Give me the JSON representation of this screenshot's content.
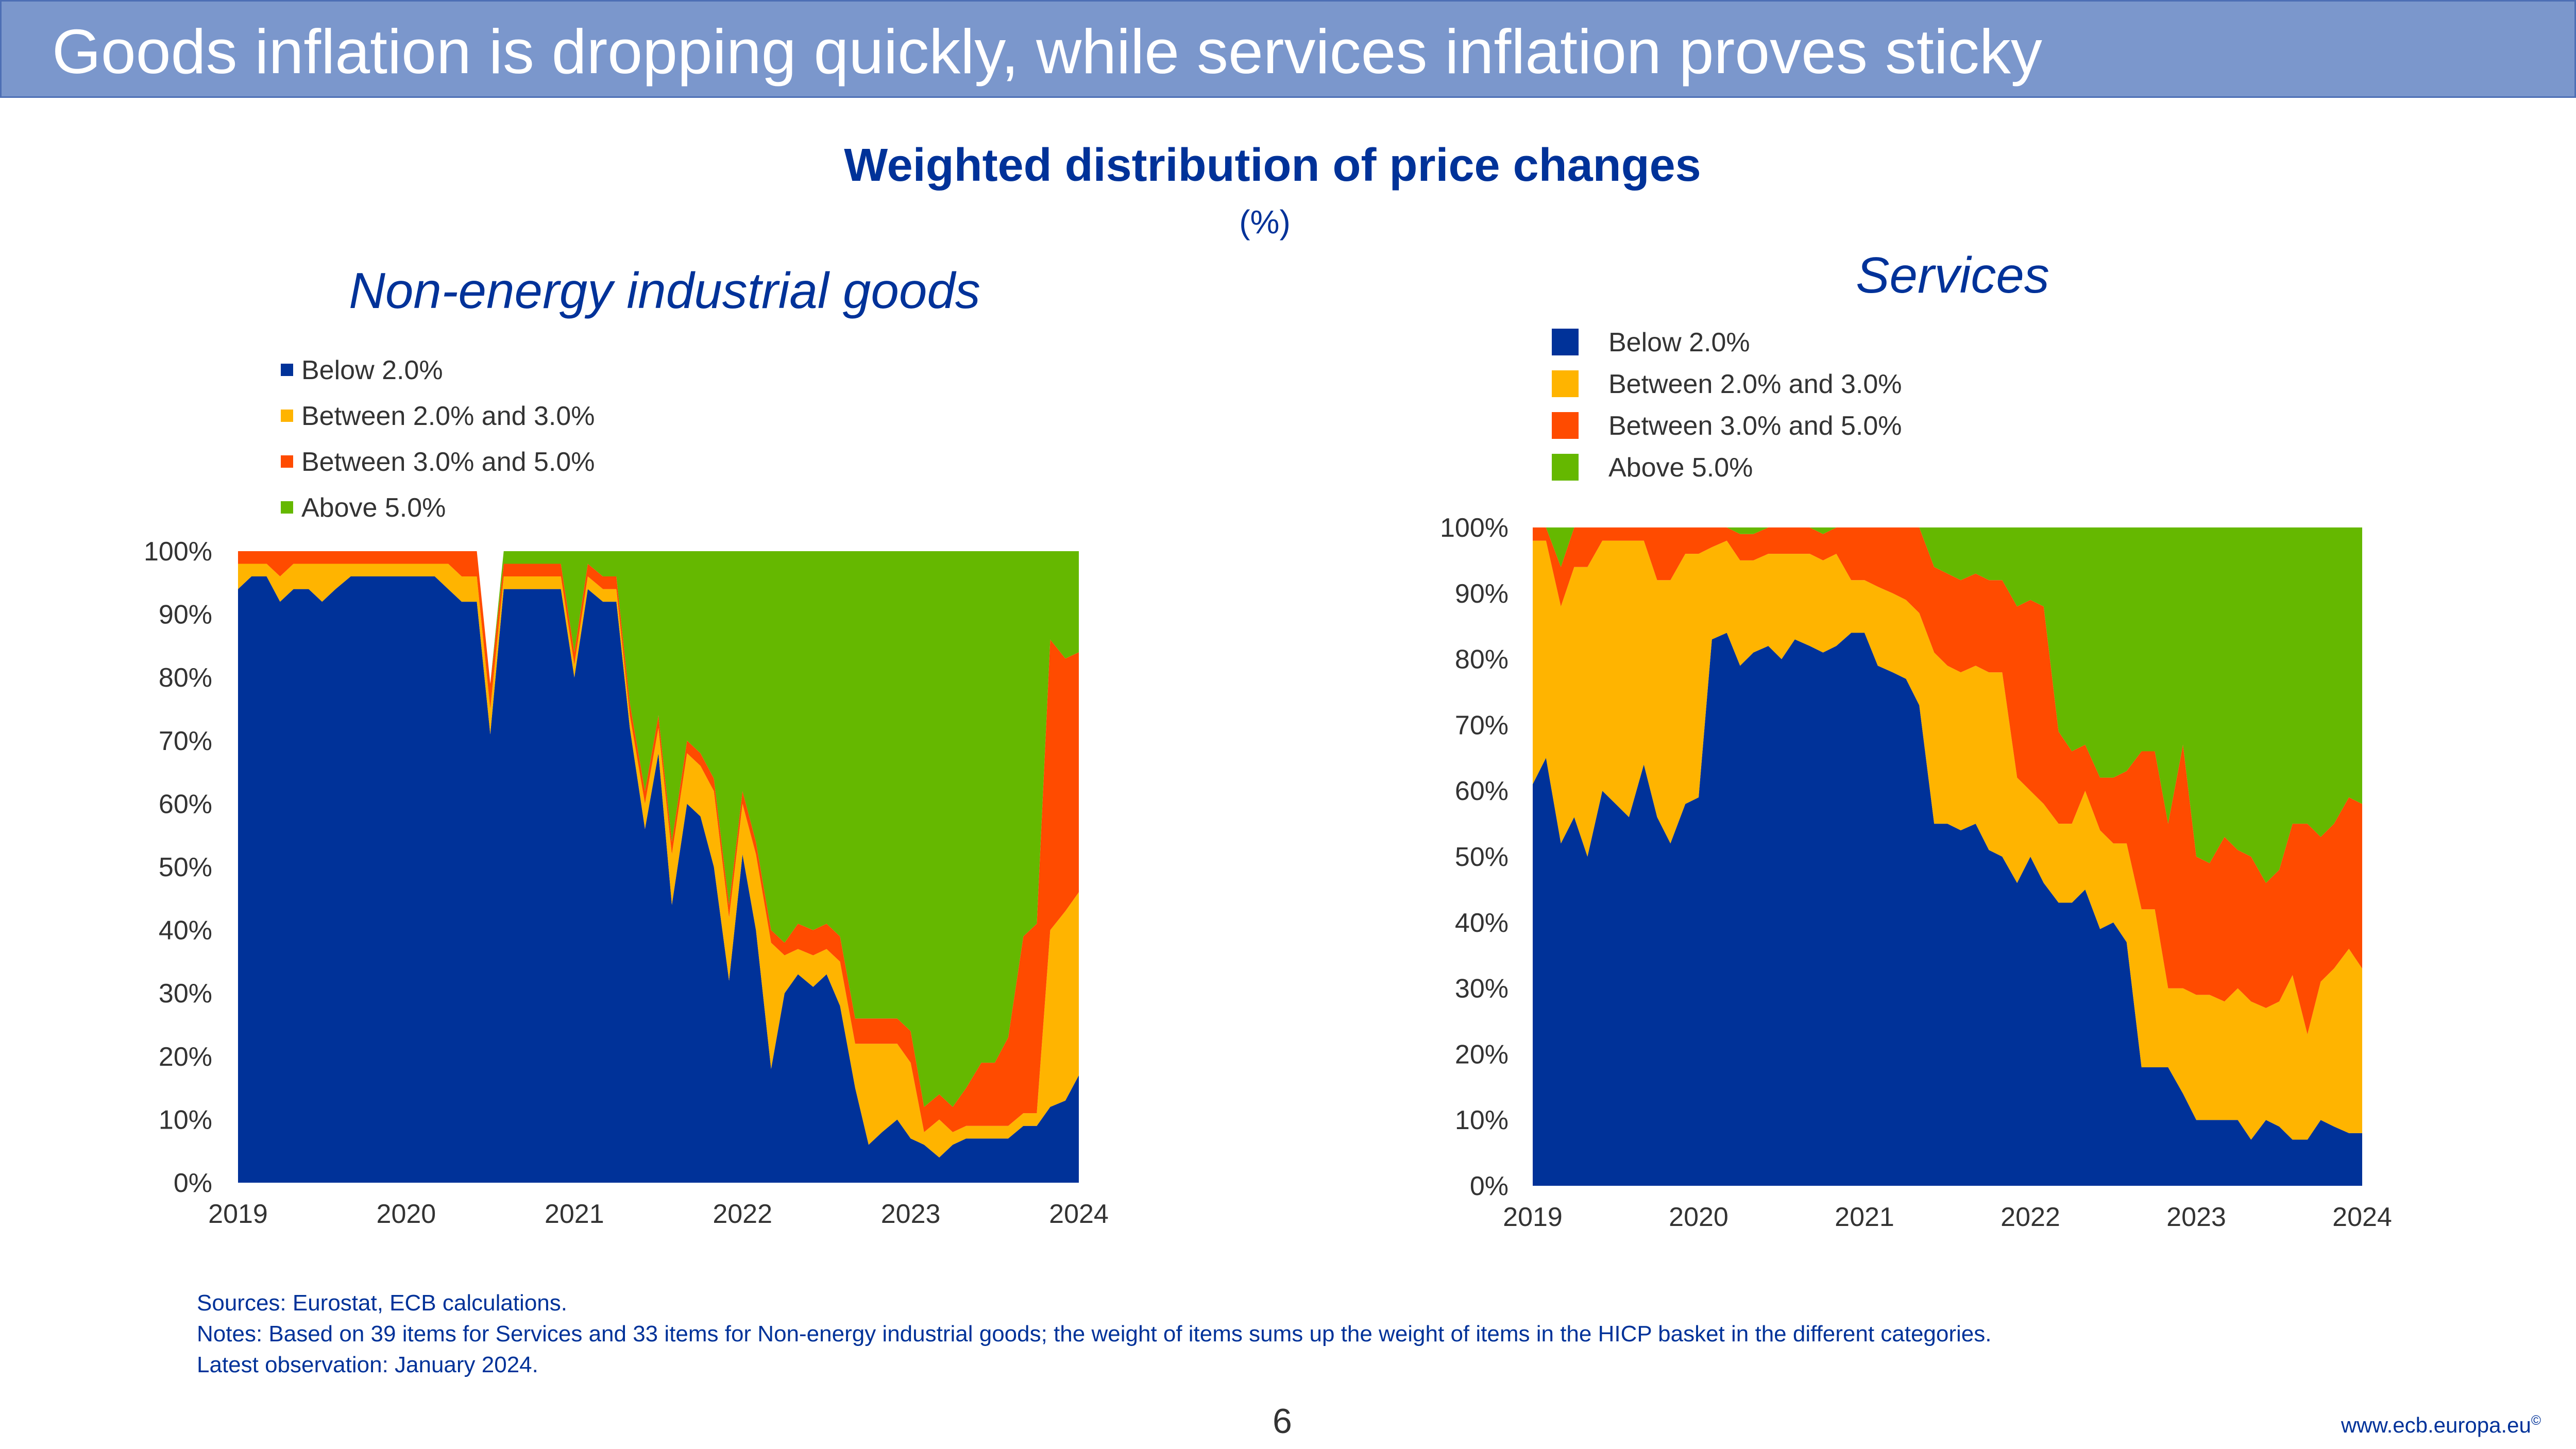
{
  "banner": {
    "title": "Goods inflation is dropping quickly, while services inflation proves sticky"
  },
  "header": {
    "title": "Weighted distribution of price changes",
    "unit": "(%)"
  },
  "colors": {
    "below_2": "#003299",
    "between_2_3": "#ffb400",
    "between_3_5": "#ff4b00",
    "above_5": "#65b800",
    "banner": "#7b97cc",
    "text_blue": "#003299"
  },
  "chart_data": [
    {
      "type": "area",
      "stacked": true,
      "title": "Non-energy industrial goods",
      "legend_placement": "top-left",
      "ylim": [
        0,
        100
      ],
      "y_ticks": [
        "0%",
        "10%",
        "20%",
        "30%",
        "40%",
        "50%",
        "60%",
        "70%",
        "80%",
        "90%",
        "100%"
      ],
      "x_ticks": [
        "2019",
        "2020",
        "2021",
        "2022",
        "2023",
        "2024"
      ],
      "x_range": [
        2019,
        2024
      ],
      "x": [
        2019.0,
        2019.08,
        2019.17,
        2019.25,
        2019.33,
        2019.42,
        2019.5,
        2019.58,
        2019.67,
        2019.75,
        2019.83,
        2019.92,
        2020.0,
        2020.08,
        2020.17,
        2020.25,
        2020.33,
        2020.42,
        2020.5,
        2020.58,
        2020.67,
        2020.75,
        2020.83,
        2020.92,
        2021.0,
        2021.08,
        2021.17,
        2021.25,
        2021.33,
        2021.42,
        2021.5,
        2021.58,
        2021.67,
        2021.75,
        2021.83,
        2021.92,
        2022.0,
        2022.08,
        2022.17,
        2022.25,
        2022.33,
        2022.42,
        2022.5,
        2022.58,
        2022.67,
        2022.75,
        2022.83,
        2022.92,
        2023.0,
        2023.08,
        2023.17,
        2023.25,
        2023.33,
        2023.42,
        2023.5,
        2023.58,
        2023.67,
        2023.75,
        2023.83,
        2023.92,
        2024.0
      ],
      "series": [
        {
          "name": "Below 2.0%",
          "values": [
            94,
            96,
            96,
            92,
            94,
            94,
            92,
            94,
            96,
            96,
            96,
            96,
            96,
            96,
            96,
            94,
            92,
            92,
            71,
            94,
            94,
            94,
            94,
            94,
            80,
            94,
            92,
            92,
            72,
            56,
            68,
            44,
            60,
            58,
            50,
            32,
            52,
            40,
            18,
            30,
            33,
            31,
            33,
            28,
            15,
            6,
            8,
            10,
            7,
            6,
            4,
            6,
            7,
            7,
            7,
            7,
            9,
            9,
            12,
            13,
            17
          ]
        },
        {
          "name": "Between 2.0% and 3.0%",
          "values": [
            4,
            2,
            2,
            4,
            4,
            4,
            6,
            4,
            2,
            2,
            2,
            2,
            2,
            2,
            2,
            4,
            4,
            4,
            4,
            2,
            2,
            2,
            2,
            2,
            2,
            2,
            2,
            2,
            2,
            4,
            4,
            8,
            8,
            8,
            12,
            10,
            8,
            12,
            20,
            6,
            4,
            5,
            4,
            7,
            7,
            16,
            14,
            12,
            12,
            2,
            6,
            2,
            2,
            2,
            2,
            2,
            2,
            2,
            28,
            30,
            29
          ]
        },
        {
          "name": "Between 3.0% and 5.0%",
          "values": [
            2,
            2,
            2,
            4,
            2,
            2,
            2,
            2,
            2,
            2,
            2,
            2,
            2,
            2,
            2,
            2,
            4,
            4,
            4,
            2,
            2,
            2,
            2,
            2,
            2,
            2,
            2,
            2,
            2,
            2,
            2,
            2,
            2,
            2,
            2,
            2,
            2,
            2,
            2,
            2,
            4,
            4,
            4,
            4,
            4,
            4,
            4,
            4,
            5,
            4,
            4,
            4,
            6,
            10,
            10,
            14,
            28,
            30,
            46,
            40,
            38
          ]
        },
        {
          "name": "Above 5.0%",
          "values": [
            0,
            0,
            0,
            0,
            0,
            0,
            0,
            0,
            0,
            0,
            0,
            0,
            0,
            0,
            0,
            0,
            0,
            0,
            0,
            2,
            2,
            2,
            2,
            2,
            16,
            2,
            4,
            4,
            24,
            38,
            26,
            46,
            30,
            32,
            36,
            56,
            38,
            46,
            60,
            62,
            59,
            60,
            59,
            61,
            74,
            74,
            74,
            74,
            76,
            88,
            86,
            88,
            85,
            81,
            81,
            77,
            61,
            59,
            14,
            17,
            16
          ]
        }
      ]
    },
    {
      "type": "area",
      "stacked": true,
      "title": "Services",
      "legend_placement": "top-left",
      "ylim": [
        0,
        100
      ],
      "y_ticks": [
        "0%",
        "10%",
        "20%",
        "30%",
        "40%",
        "50%",
        "60%",
        "70%",
        "80%",
        "90%",
        "100%"
      ],
      "x_ticks": [
        "2019",
        "2020",
        "2021",
        "2022",
        "2023",
        "2024"
      ],
      "x_range": [
        2019,
        2024
      ],
      "x": [
        2019.0,
        2019.08,
        2019.17,
        2019.25,
        2019.33,
        2019.42,
        2019.5,
        2019.58,
        2019.67,
        2019.75,
        2019.83,
        2019.92,
        2020.0,
        2020.08,
        2020.17,
        2020.25,
        2020.33,
        2020.42,
        2020.5,
        2020.58,
        2020.67,
        2020.75,
        2020.83,
        2020.92,
        2021.0,
        2021.08,
        2021.17,
        2021.25,
        2021.33,
        2021.42,
        2021.5,
        2021.58,
        2021.67,
        2021.75,
        2021.83,
        2021.92,
        2022.0,
        2022.08,
        2022.17,
        2022.25,
        2022.33,
        2022.42,
        2022.5,
        2022.58,
        2022.67,
        2022.75,
        2022.83,
        2022.92,
        2023.0,
        2023.08,
        2023.17,
        2023.25,
        2023.33,
        2023.42,
        2023.5,
        2023.58,
        2023.67,
        2023.75,
        2023.83,
        2023.92,
        2024.0
      ],
      "series": [
        {
          "name": "Below 2.0%",
          "values": [
            61,
            65,
            52,
            56,
            50,
            60,
            58,
            56,
            64,
            56,
            52,
            58,
            59,
            83,
            84,
            79,
            81,
            82,
            80,
            83,
            82,
            81,
            82,
            84,
            84,
            79,
            78,
            77,
            73,
            55,
            55,
            54,
            55,
            51,
            50,
            46,
            50,
            46,
            43,
            43,
            45,
            39,
            40,
            37,
            18,
            18,
            18,
            14,
            10,
            10,
            10,
            10,
            7,
            10,
            9,
            7,
            7,
            10,
            9,
            8,
            8
          ]
        },
        {
          "name": "Between 2.0% and 3.0%",
          "values": [
            37,
            33,
            36,
            38,
            44,
            38,
            40,
            42,
            34,
            36,
            40,
            38,
            37,
            14,
            14,
            16,
            14,
            14,
            16,
            13,
            14,
            14,
            14,
            8,
            8,
            12,
            12,
            12,
            14,
            26,
            24,
            24,
            24,
            27,
            28,
            16,
            10,
            12,
            12,
            12,
            15,
            15,
            12,
            15,
            24,
            24,
            12,
            16,
            19,
            19,
            18,
            20,
            21,
            17,
            19,
            25,
            16,
            21,
            24,
            28,
            25
          ]
        },
        {
          "name": "Between 3.0% and 5.0%",
          "values": [
            2,
            2,
            6,
            6,
            6,
            2,
            2,
            2,
            2,
            8,
            8,
            4,
            4,
            3,
            2,
            4,
            4,
            4,
            4,
            4,
            4,
            4,
            4,
            8,
            8,
            9,
            10,
            11,
            13,
            13,
            14,
            14,
            14,
            14,
            14,
            26,
            29,
            30,
            14,
            11,
            7,
            8,
            10,
            11,
            24,
            24,
            25,
            37,
            21,
            20,
            25,
            21,
            22,
            19,
            20,
            23,
            32,
            22,
            22,
            23,
            25
          ]
        },
        {
          "name": "Above 5.0%",
          "values": [
            0,
            0,
            6,
            0,
            0,
            0,
            0,
            0,
            0,
            0,
            0,
            0,
            0,
            0,
            0,
            1,
            1,
            0,
            0,
            0,
            0,
            1,
            0,
            0,
            0,
            0,
            0,
            0,
            0,
            6,
            7,
            8,
            7,
            8,
            8,
            12,
            11,
            12,
            31,
            34,
            33,
            38,
            38,
            37,
            34,
            34,
            45,
            33,
            50,
            51,
            47,
            49,
            50,
            54,
            52,
            45,
            45,
            47,
            45,
            41,
            42
          ]
        }
      ]
    }
  ],
  "notes": {
    "sources": "Sources: Eurostat, ECB calculations.",
    "notes": "Notes: Based on 39 items for Services and 33 items for Non-energy industrial goods; the weight of items sums up the weight of items in the HICP basket in the different categories.",
    "latest": "Latest observation: January 2024."
  },
  "footer": {
    "page_number": "6",
    "url": "www.ecb.europa.eu",
    "copyright": "©"
  }
}
